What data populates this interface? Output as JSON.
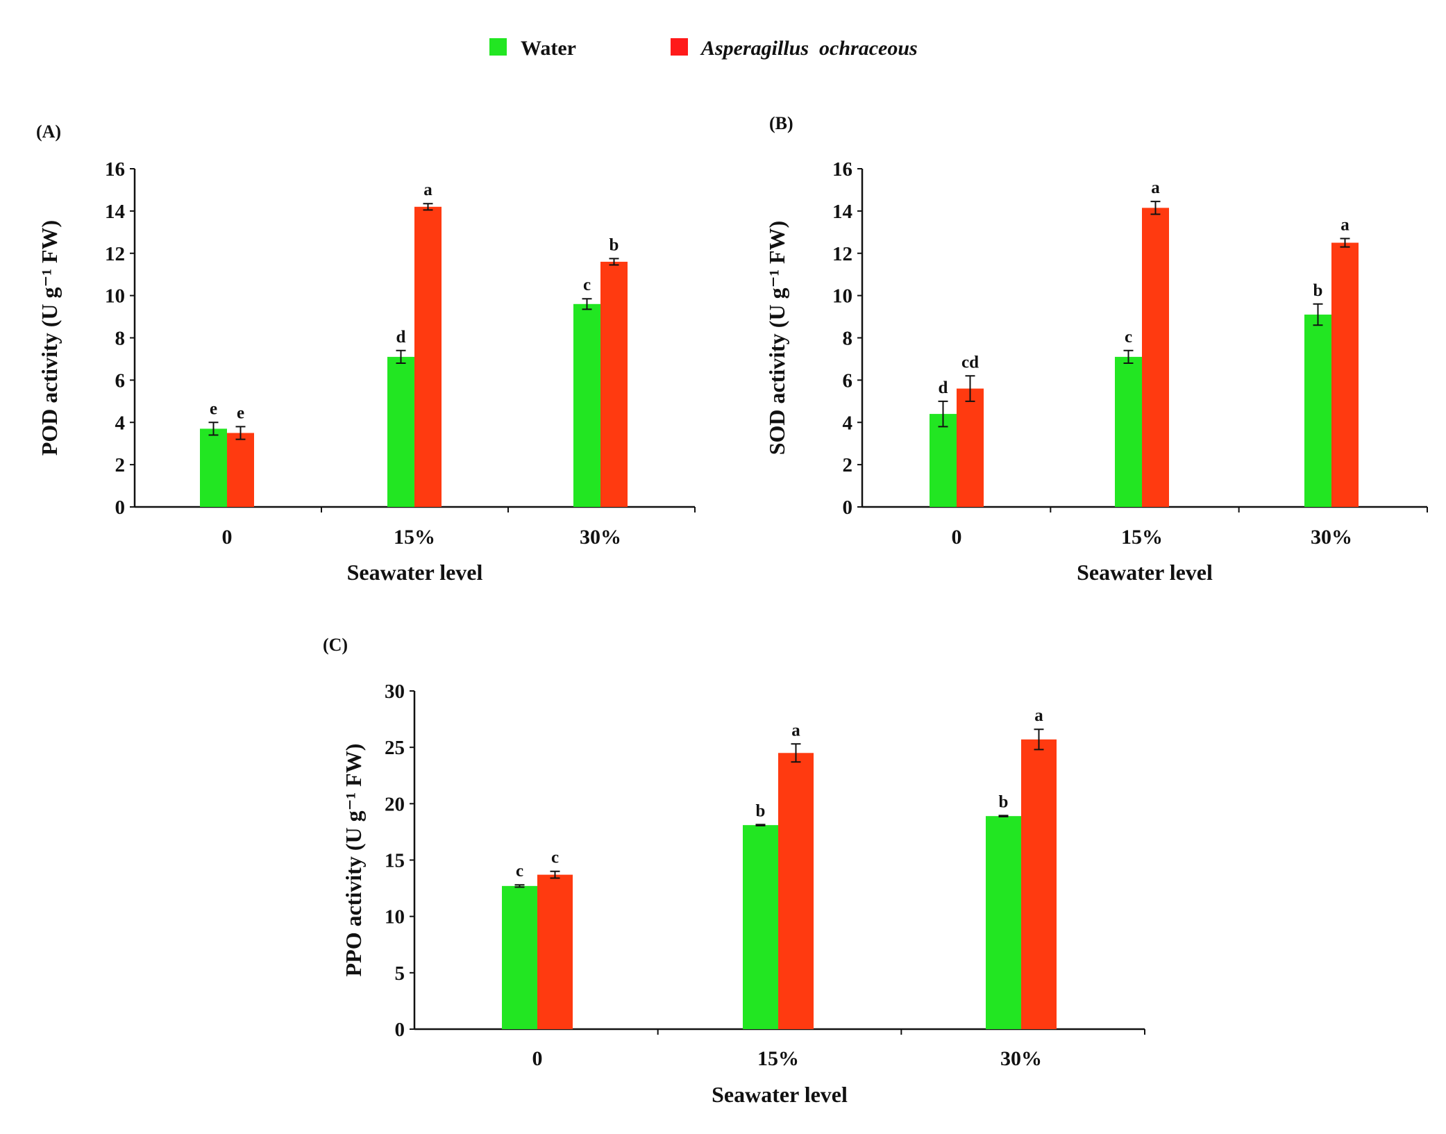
{
  "legend": {
    "items": [
      {
        "label": "Water",
        "color": "#22e622"
      },
      {
        "label": "Asperagillus  ochraceous",
        "color": "#ff3a10"
      }
    ]
  },
  "chart_data": [
    {
      "type": "bar",
      "panel": "(A)",
      "categories": [
        "0",
        "15%",
        "30%"
      ],
      "xlabel": "Seawater level",
      "ylabel": "POD activity (U g⁻¹ FW)",
      "ylim": [
        0,
        16
      ],
      "yticks": [
        0,
        2,
        4,
        6,
        8,
        10,
        12,
        14,
        16
      ],
      "series": [
        {
          "name": "Water",
          "values": [
            3.7,
            7.1,
            9.6
          ],
          "errors": [
            0.3,
            0.3,
            0.25
          ],
          "letters": [
            "e",
            "d",
            "c"
          ]
        },
        {
          "name": "Asperagillus ochraceous",
          "values": [
            3.5,
            14.2,
            11.6
          ],
          "errors": [
            0.3,
            0.15,
            0.15
          ],
          "letters": [
            "e",
            "a",
            "b"
          ]
        }
      ]
    },
    {
      "type": "bar",
      "panel": "(B)",
      "categories": [
        "0",
        "15%",
        "30%"
      ],
      "xlabel": "Seawater level",
      "ylabel": "SOD activity (U g⁻¹ FW)",
      "ylim": [
        0,
        16
      ],
      "yticks": [
        0,
        2,
        4,
        6,
        8,
        10,
        12,
        14,
        16
      ],
      "series": [
        {
          "name": "Water",
          "values": [
            4.4,
            7.1,
            9.1
          ],
          "errors": [
            0.6,
            0.3,
            0.5
          ],
          "letters": [
            "d",
            "c",
            "b"
          ]
        },
        {
          "name": "Asperagillus ochraceous",
          "values": [
            5.6,
            14.15,
            12.5
          ],
          "errors": [
            0.6,
            0.3,
            0.2
          ],
          "letters": [
            "cd",
            "a",
            "a"
          ]
        }
      ]
    },
    {
      "type": "bar",
      "panel": "(C)",
      "categories": [
        "0",
        "15%",
        "30%"
      ],
      "xlabel": "Seawater level",
      "ylabel": "PPO activity (U g⁻¹ FW)",
      "ylim": [
        0,
        30
      ],
      "yticks": [
        0,
        5,
        10,
        15,
        20,
        25,
        30
      ],
      "series": [
        {
          "name": "Water",
          "values": [
            12.7,
            18.1,
            18.9
          ],
          "errors": [
            0.1,
            0.05,
            0.05
          ],
          "letters": [
            "c",
            "b",
            "b"
          ]
        },
        {
          "name": "Asperagillus ochraceous",
          "values": [
            13.7,
            24.5,
            25.7
          ],
          "errors": [
            0.3,
            0.8,
            0.9
          ],
          "letters": [
            "c",
            "a",
            "a"
          ]
        }
      ]
    }
  ]
}
